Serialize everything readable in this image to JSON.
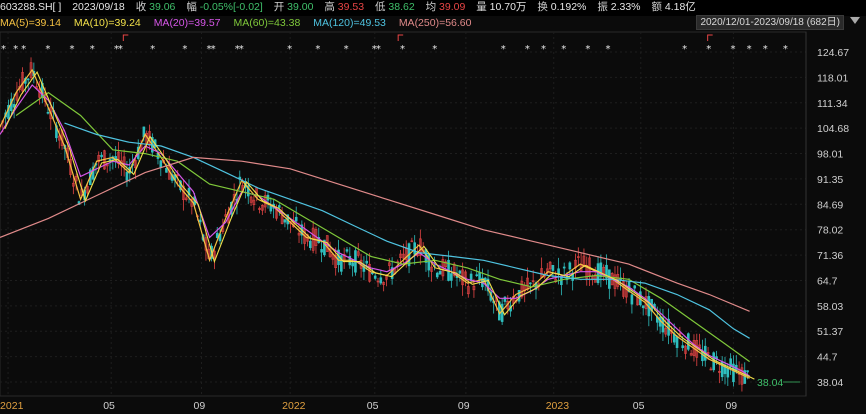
{
  "quote": {
    "code": "603288.SH[ ]",
    "date": "2023/09/18",
    "close_label": "收",
    "close": "39.06",
    "change_label": "幅",
    "change": "-0.05%[-0.02]",
    "open_label": "开",
    "open": "39.00",
    "high_label": "高",
    "high": "39.53",
    "low_label": "低",
    "low": "38.62",
    "avg_label": "均",
    "avg": "39.09",
    "vol_label": "量",
    "vol": "10.70万",
    "turnover_label": "换",
    "turnover": "0.192%",
    "amp_label": "振",
    "amp": "2.33%",
    "amount_label": "额",
    "amount": "4.18亿"
  },
  "ma": [
    {
      "label": "MA(5)=39.14",
      "color": "#f5c142"
    },
    {
      "label": "MA(10)=39.24",
      "color": "#f2e04a"
    },
    {
      "label": "MA(20)=39.57",
      "color": "#d656e8"
    },
    {
      "label": "MA(60)=43.38",
      "color": "#7fc83a"
    },
    {
      "label": "MA(120)=49.53",
      "color": "#4fc3e0"
    },
    {
      "label": "MA(250)=56.60",
      "color": "#e08a8a"
    }
  ],
  "range_label": "2020/12/01-2023/09/18 (682日)",
  "last_price_label": "38.04",
  "chart_data": {
    "type": "line",
    "title": "",
    "xlabel": "",
    "ylabel": "",
    "ylim": [
      38.04,
      124.67
    ],
    "y_ticks": [
      "124.67",
      "118.01",
      "111.34",
      "104.68",
      "98.01",
      "91.35",
      "84.69",
      "78.02",
      "71.36",
      "64.7",
      "58.03",
      "51.37",
      "44.7",
      "38.04"
    ],
    "x_ticks": [
      {
        "label": "2021",
        "t": 0.01,
        "color": "#e0a040"
      },
      {
        "label": "05",
        "t": 0.138,
        "color": "#d0d0d0"
      },
      {
        "label": "09",
        "t": 0.25,
        "color": "#d0d0d0"
      },
      {
        "label": "2022",
        "t": 0.36,
        "color": "#e0a040"
      },
      {
        "label": "05",
        "t": 0.465,
        "color": "#d0d0d0"
      },
      {
        "label": "09",
        "t": 0.578,
        "color": "#d0d0d0"
      },
      {
        "label": "2023",
        "t": 0.687,
        "color": "#e0a040"
      },
      {
        "label": "05",
        "t": 0.795,
        "color": "#d0d0d0"
      },
      {
        "label": "09",
        "t": 0.91,
        "color": "#d0d0d0"
      }
    ],
    "series": [
      {
        "name": "MA(5)",
        "color": "#f5c142",
        "x": [
          0,
          0.02,
          0.04,
          0.06,
          0.08,
          0.1,
          0.12,
          0.14,
          0.16,
          0.18,
          0.2,
          0.22,
          0.24,
          0.26,
          0.28,
          0.3,
          0.32,
          0.34,
          0.36,
          0.38,
          0.4,
          0.42,
          0.44,
          0.46,
          0.48,
          0.5,
          0.52,
          0.54,
          0.56,
          0.58,
          0.6,
          0.62,
          0.64,
          0.66,
          0.68,
          0.7,
          0.72,
          0.74,
          0.76,
          0.78,
          0.8,
          0.82,
          0.84,
          0.86,
          0.88,
          0.9,
          0.92,
          0.93
        ],
        "values": [
          105,
          114,
          120,
          110,
          100,
          86,
          96,
          97,
          93,
          103,
          97,
          90,
          85,
          70,
          81,
          91,
          86,
          84,
          80,
          76,
          75,
          70,
          70,
          67,
          66,
          70,
          74,
          68,
          67,
          64,
          65,
          56,
          61,
          63,
          67,
          66,
          69,
          67,
          65,
          62,
          59,
          54,
          50,
          47,
          44,
          42,
          40,
          39
        ]
      },
      {
        "name": "MA(20)",
        "color": "#d656e8",
        "x": [
          0,
          0.02,
          0.04,
          0.06,
          0.08,
          0.1,
          0.12,
          0.14,
          0.16,
          0.18,
          0.2,
          0.22,
          0.24,
          0.26,
          0.28,
          0.3,
          0.32,
          0.34,
          0.36,
          0.38,
          0.4,
          0.42,
          0.44,
          0.46,
          0.48,
          0.5,
          0.52,
          0.54,
          0.56,
          0.58,
          0.6,
          0.62,
          0.64,
          0.66,
          0.68,
          0.7,
          0.72,
          0.74,
          0.76,
          0.78,
          0.8,
          0.82,
          0.84,
          0.86,
          0.88,
          0.9,
          0.92,
          0.93
        ],
        "values": [
          103,
          110,
          116,
          112,
          104,
          92,
          94,
          96,
          95,
          100,
          98,
          93,
          88,
          76,
          80,
          88,
          87,
          84,
          81,
          78,
          75,
          72,
          70,
          68,
          67,
          69,
          72,
          69,
          67,
          65,
          64,
          60,
          60,
          62,
          65,
          66,
          67,
          67,
          65,
          63,
          60,
          56,
          52,
          48,
          45,
          43,
          41,
          39.6
        ]
      },
      {
        "name": "MA(60)",
        "color": "#7fc83a",
        "x": [
          0.02,
          0.06,
          0.1,
          0.14,
          0.18,
          0.22,
          0.26,
          0.3,
          0.34,
          0.38,
          0.42,
          0.46,
          0.5,
          0.54,
          0.58,
          0.62,
          0.66,
          0.7,
          0.74,
          0.78,
          0.82,
          0.86,
          0.9,
          0.93
        ],
        "values": [
          108,
          114,
          108,
          99,
          98,
          96,
          90,
          88,
          86,
          81,
          76,
          71,
          69,
          70,
          68,
          65,
          63,
          65,
          66,
          65,
          60,
          54,
          48,
          43.4
        ]
      },
      {
        "name": "MA(120)",
        "color": "#4fc3e0",
        "x": [
          0.08,
          0.12,
          0.16,
          0.2,
          0.24,
          0.28,
          0.32,
          0.36,
          0.4,
          0.44,
          0.48,
          0.52,
          0.56,
          0.6,
          0.64,
          0.68,
          0.72,
          0.76,
          0.8,
          0.84,
          0.88,
          0.91,
          0.93
        ],
        "values": [
          106,
          103,
          101,
          100,
          97,
          93,
          89,
          86,
          83,
          79,
          75,
          72,
          71,
          70,
          68,
          66,
          65,
          65,
          64,
          61,
          57,
          52,
          49.5
        ]
      },
      {
        "name": "MA(250)",
        "color": "#e08a8a",
        "x": [
          0,
          0.06,
          0.12,
          0.18,
          0.24,
          0.3,
          0.36,
          0.42,
          0.48,
          0.54,
          0.6,
          0.66,
          0.72,
          0.78,
          0.84,
          0.88,
          0.93
        ],
        "values": [
          76,
          81,
          87,
          93,
          97,
          96,
          94,
          90,
          86,
          82,
          78,
          75,
          72,
          69,
          64,
          61,
          56.6
        ]
      }
    ]
  }
}
